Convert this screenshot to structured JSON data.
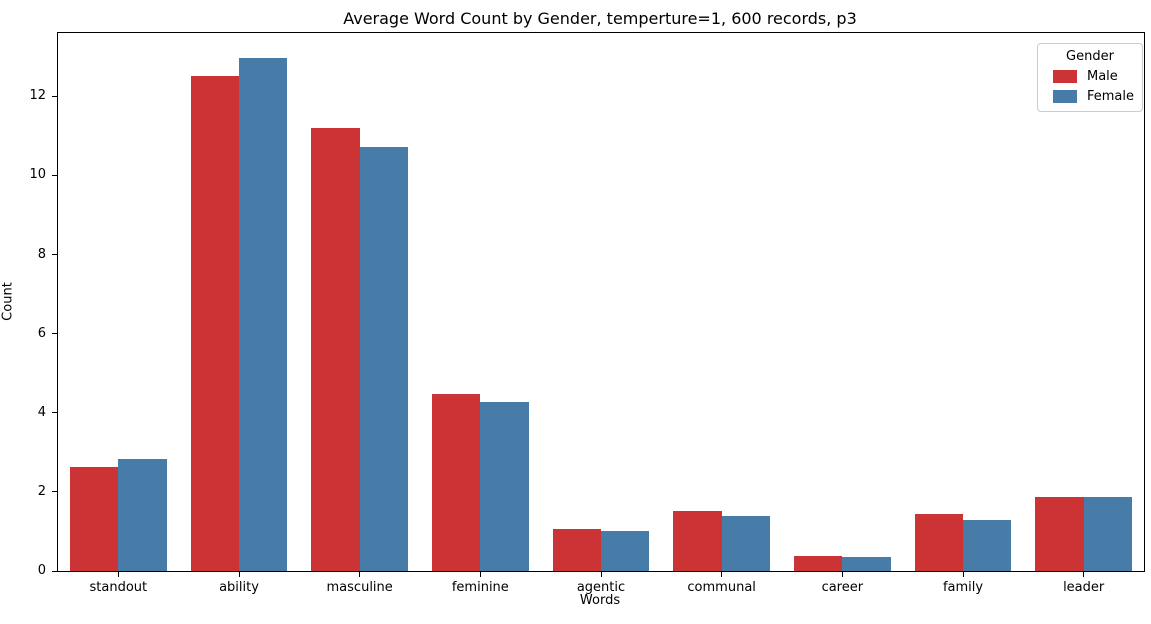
{
  "chart_data": {
    "type": "bar",
    "title": "Average Word Count by Gender, temperture=1, 600 records, p3",
    "xlabel": "Words",
    "ylabel": "Count",
    "categories": [
      "standout",
      "ability",
      "masculine",
      "feminine",
      "agentic",
      "communal",
      "career",
      "family",
      "leader"
    ],
    "series": [
      {
        "name": "Male",
        "color": "#cb3335",
        "values": [
          2.62,
          12.52,
          11.21,
          4.47,
          1.06,
          1.51,
          0.39,
          1.43,
          1.88
        ]
      },
      {
        "name": "Female",
        "color": "#477ca8",
        "values": [
          2.84,
          12.96,
          10.71,
          4.28,
          1.02,
          1.38,
          0.36,
          1.28,
          1.88
        ]
      }
    ],
    "ylim": [
      0,
      13.6
    ],
    "yticks": [
      0,
      2,
      4,
      6,
      8,
      10,
      12
    ],
    "legend": {
      "title": "Gender",
      "position": "upper right"
    },
    "grid": false,
    "group_width_fraction": 0.8
  }
}
